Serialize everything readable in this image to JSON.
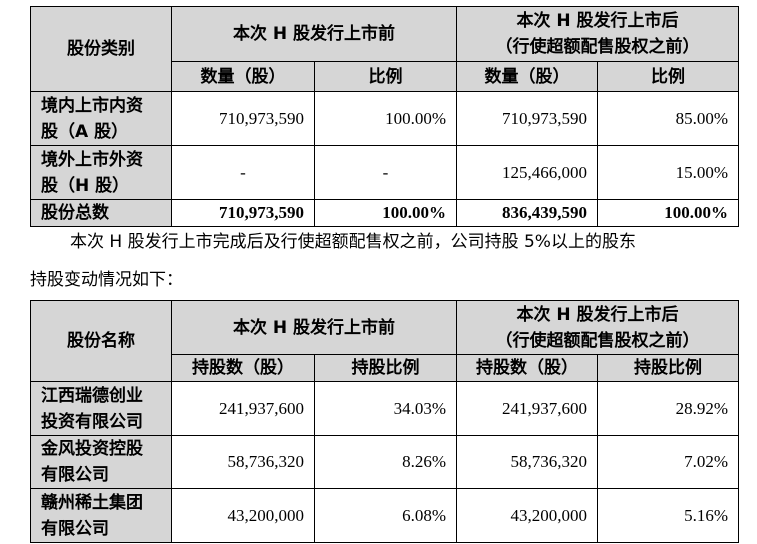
{
  "table1": {
    "category_header": "股份类别",
    "before_header": "本次 H 股发行上市前",
    "after_header_line1": "本次 H 股发行上市后",
    "after_header_line2": "（行使超额配售股权之前）",
    "qty_header": "数量（股）",
    "ratio_header": "比例",
    "rows": [
      {
        "label_line1": "境内上市内资",
        "label_line2": "股（A 股）",
        "before_qty": "710,973,590",
        "before_ratio": "100.00%",
        "after_qty": "710,973,590",
        "after_ratio": "85.00%"
      },
      {
        "label_line1": "境外上市外资",
        "label_line2": "股（H 股）",
        "before_qty": "-",
        "before_ratio": "-",
        "after_qty": "125,466,000",
        "after_ratio": "15.00%"
      }
    ],
    "total": {
      "label": "股份总数",
      "before_qty": "710,973,590",
      "before_ratio": "100.00%",
      "after_qty": "836,439,590",
      "after_ratio": "100.00%"
    }
  },
  "paragraph": {
    "line1": "本次 H 股发行上市完成后及行使超额配售权之前，公司持股 5%以上的股东",
    "line2": "持股变动情况如下："
  },
  "table2": {
    "name_header": "股份名称",
    "before_header": "本次 H 股发行上市前",
    "after_header_line1": "本次 H 股发行上市后",
    "after_header_line2": "（行使超额配售股权之前）",
    "shares_header": "持股数（股）",
    "ratio_header": "持股比例",
    "rows": [
      {
        "name_line1": "江西瑞德创业",
        "name_line2": "投资有限公司",
        "before_shares": "241,937,600",
        "before_ratio": "34.03%",
        "after_shares": "241,937,600",
        "after_ratio": "28.92%"
      },
      {
        "name_line1": "金风投资控股",
        "name_line2": "有限公司",
        "before_shares": "58,736,320",
        "before_ratio": "8.26%",
        "after_shares": "58,736,320",
        "after_ratio": "7.02%"
      },
      {
        "name_line1": "赣州稀土集团",
        "name_line2": "有限公司",
        "before_shares": "43,200,000",
        "before_ratio": "6.08%",
        "after_shares": "43,200,000",
        "after_ratio": "5.16%"
      }
    ]
  }
}
